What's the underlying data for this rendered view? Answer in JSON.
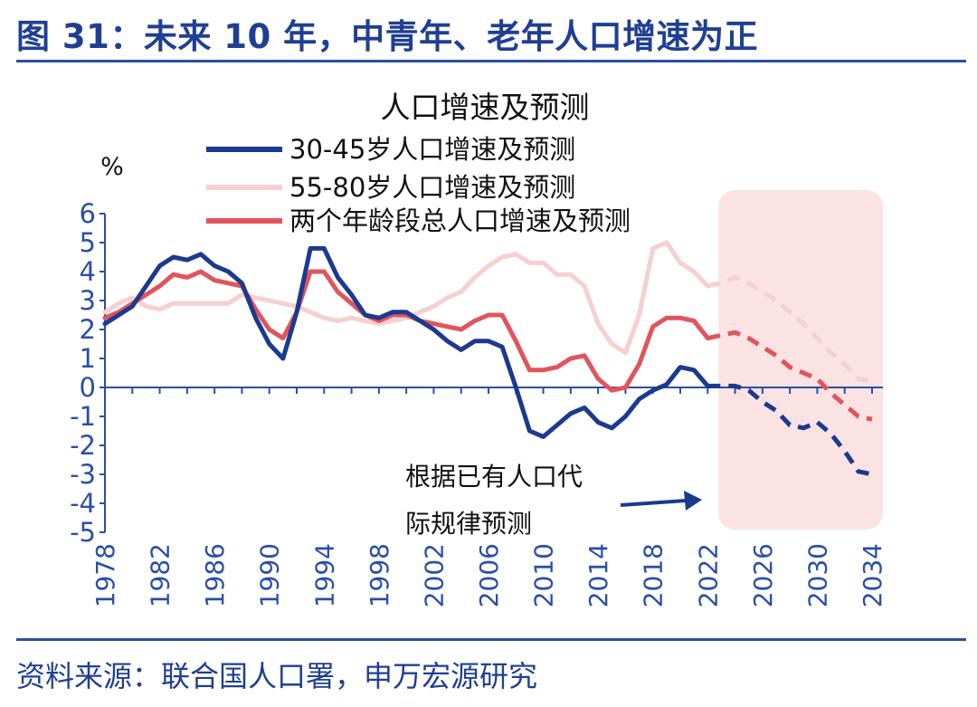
{
  "figure_title": "图 31：未来 10 年，中青年、老年人口增速为正",
  "source": "资料来源：联合国人口署，申万宏源研究",
  "colors": {
    "title": "#1f3f93",
    "axis": "#2a4ea8",
    "shade": "#fbe3e3"
  },
  "chart_data": {
    "type": "line",
    "title": "人口增速及预测",
    "ylabel": "%",
    "ylim": [
      -5,
      6
    ],
    "yticks": [
      "6",
      "5",
      "4",
      "3",
      "2",
      "1",
      "0",
      "-1",
      "-2",
      "-3",
      "-4",
      "-5"
    ],
    "xlim": [
      1978,
      2034
    ],
    "xticks": [
      "1978",
      "1982",
      "1986",
      "1990",
      "1994",
      "1998",
      "2002",
      "2006",
      "2010",
      "2014",
      "2018",
      "2022",
      "2026",
      "2030",
      "2034"
    ],
    "forecast_start": 2023,
    "legend_position": "top",
    "annotation": [
      "根据已有人口代",
      "际规律预测"
    ],
    "series": [
      {
        "name": "30-45岁人口增速及预测",
        "color": "#1b3a8f",
        "values": [
          [
            1978,
            2.2
          ],
          [
            1979,
            2.5
          ],
          [
            1980,
            2.8
          ],
          [
            1981,
            3.5
          ],
          [
            1982,
            4.2
          ],
          [
            1983,
            4.5
          ],
          [
            1984,
            4.4
          ],
          [
            1985,
            4.6
          ],
          [
            1986,
            4.2
          ],
          [
            1987,
            4.0
          ],
          [
            1988,
            3.6
          ],
          [
            1989,
            2.4
          ],
          [
            1990,
            1.5
          ],
          [
            1991,
            1.0
          ],
          [
            1992,
            2.6
          ],
          [
            1993,
            4.8
          ],
          [
            1994,
            4.8
          ],
          [
            1995,
            3.8
          ],
          [
            1996,
            3.2
          ],
          [
            1997,
            2.5
          ],
          [
            1998,
            2.4
          ],
          [
            1999,
            2.6
          ],
          [
            2000,
            2.6
          ],
          [
            2001,
            2.3
          ],
          [
            2002,
            2.0
          ],
          [
            2003,
            1.6
          ],
          [
            2004,
            1.3
          ],
          [
            2005,
            1.6
          ],
          [
            2006,
            1.6
          ],
          [
            2007,
            1.4
          ],
          [
            2008,
            0.0
          ],
          [
            2009,
            -1.5
          ],
          [
            2010,
            -1.7
          ],
          [
            2011,
            -1.3
          ],
          [
            2012,
            -0.9
          ],
          [
            2013,
            -0.7
          ],
          [
            2014,
            -1.2
          ],
          [
            2015,
            -1.4
          ],
          [
            2016,
            -1.0
          ],
          [
            2017,
            -0.4
          ],
          [
            2018,
            -0.1
          ],
          [
            2019,
            0.1
          ],
          [
            2020,
            0.7
          ],
          [
            2021,
            0.6
          ],
          [
            2022,
            0.05
          ],
          [
            2023,
            0.05
          ],
          [
            2024,
            0.05
          ],
          [
            2025,
            -0.1
          ],
          [
            2026,
            -0.5
          ],
          [
            2027,
            -0.8
          ],
          [
            2028,
            -1.3
          ],
          [
            2029,
            -1.4
          ],
          [
            2030,
            -1.2
          ],
          [
            2031,
            -1.6
          ],
          [
            2032,
            -2.2
          ],
          [
            2033,
            -2.9
          ],
          [
            2034,
            -3.0
          ]
        ]
      },
      {
        "name": "55-80岁人口增速及预测",
        "color": "#f6d0d0",
        "values": [
          [
            1978,
            2.6
          ],
          [
            1979,
            2.9
          ],
          [
            1980,
            3.1
          ],
          [
            1981,
            2.8
          ],
          [
            1982,
            2.7
          ],
          [
            1983,
            2.9
          ],
          [
            1984,
            2.9
          ],
          [
            1985,
            2.9
          ],
          [
            1986,
            2.9
          ],
          [
            1987,
            2.9
          ],
          [
            1988,
            3.2
          ],
          [
            1989,
            3.1
          ],
          [
            1990,
            3.0
          ],
          [
            1991,
            2.9
          ],
          [
            1992,
            2.8
          ],
          [
            1993,
            2.6
          ],
          [
            1994,
            2.4
          ],
          [
            1995,
            2.3
          ],
          [
            1996,
            2.4
          ],
          [
            1997,
            2.3
          ],
          [
            1998,
            2.2
          ],
          [
            1999,
            2.3
          ],
          [
            2000,
            2.4
          ],
          [
            2001,
            2.6
          ],
          [
            2002,
            2.8
          ],
          [
            2003,
            3.1
          ],
          [
            2004,
            3.3
          ],
          [
            2005,
            3.8
          ],
          [
            2006,
            4.2
          ],
          [
            2007,
            4.5
          ],
          [
            2008,
            4.6
          ],
          [
            2009,
            4.3
          ],
          [
            2010,
            4.3
          ],
          [
            2011,
            3.9
          ],
          [
            2012,
            3.9
          ],
          [
            2013,
            3.5
          ],
          [
            2014,
            2.2
          ],
          [
            2015,
            1.5
          ],
          [
            2016,
            1.2
          ],
          [
            2017,
            2.5
          ],
          [
            2018,
            4.8
          ],
          [
            2019,
            5.0
          ],
          [
            2020,
            4.3
          ],
          [
            2021,
            4.0
          ],
          [
            2022,
            3.5
          ],
          [
            2023,
            3.6
          ],
          [
            2024,
            3.8
          ],
          [
            2025,
            3.6
          ],
          [
            2026,
            3.3
          ],
          [
            2027,
            3.0
          ],
          [
            2028,
            2.6
          ],
          [
            2029,
            2.2
          ],
          [
            2030,
            1.7
          ],
          [
            2031,
            1.2
          ],
          [
            2032,
            0.8
          ],
          [
            2033,
            0.3
          ],
          [
            2034,
            0.2
          ]
        ]
      },
      {
        "name": "两个年龄段总人口增速及预测",
        "color": "#e2545c",
        "values": [
          [
            1978,
            2.4
          ],
          [
            1979,
            2.6
          ],
          [
            1980,
            2.9
          ],
          [
            1981,
            3.2
          ],
          [
            1982,
            3.5
          ],
          [
            1983,
            3.9
          ],
          [
            1984,
            3.8
          ],
          [
            1985,
            4.0
          ],
          [
            1986,
            3.7
          ],
          [
            1987,
            3.6
          ],
          [
            1988,
            3.5
          ],
          [
            1989,
            2.7
          ],
          [
            1990,
            2.0
          ],
          [
            1991,
            1.7
          ],
          [
            1992,
            2.6
          ],
          [
            1993,
            4.0
          ],
          [
            1994,
            4.0
          ],
          [
            1995,
            3.3
          ],
          [
            1996,
            2.9
          ],
          [
            1997,
            2.5
          ],
          [
            1998,
            2.3
          ],
          [
            1999,
            2.5
          ],
          [
            2000,
            2.5
          ],
          [
            2001,
            2.3
          ],
          [
            2002,
            2.2
          ],
          [
            2003,
            2.1
          ],
          [
            2004,
            2.0
          ],
          [
            2005,
            2.3
          ],
          [
            2006,
            2.5
          ],
          [
            2007,
            2.5
          ],
          [
            2008,
            1.6
          ],
          [
            2009,
            0.6
          ],
          [
            2010,
            0.6
          ],
          [
            2011,
            0.7
          ],
          [
            2012,
            1.0
          ],
          [
            2013,
            1.1
          ],
          [
            2014,
            0.3
          ],
          [
            2015,
            -0.1
          ],
          [
            2016,
            0.0
          ],
          [
            2017,
            0.8
          ],
          [
            2018,
            2.1
          ],
          [
            2019,
            2.4
          ],
          [
            2020,
            2.4
          ],
          [
            2021,
            2.3
          ],
          [
            2022,
            1.7
          ],
          [
            2023,
            1.8
          ],
          [
            2024,
            1.9
          ],
          [
            2025,
            1.7
          ],
          [
            2026,
            1.4
          ],
          [
            2027,
            1.1
          ],
          [
            2028,
            0.7
          ],
          [
            2029,
            0.5
          ],
          [
            2030,
            0.3
          ],
          [
            2031,
            -0.2
          ],
          [
            2032,
            -0.6
          ],
          [
            2033,
            -1.0
          ],
          [
            2034,
            -1.1
          ]
        ]
      }
    ]
  }
}
